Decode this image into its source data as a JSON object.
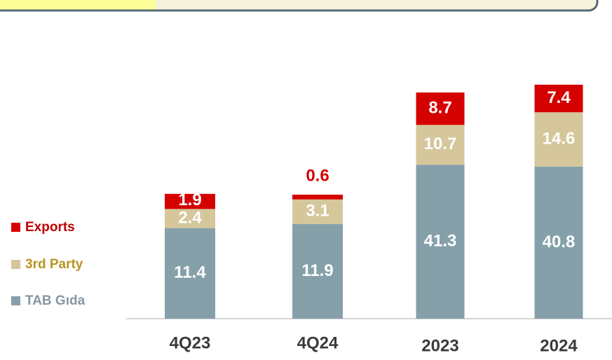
{
  "chart_data": [
    {
      "type": "stacked-bar",
      "categories": [
        "4Q23",
        "4Q24"
      ],
      "series": [
        {
          "name": "TAB Gıda",
          "color": "#86a0aa",
          "values": [
            11.4,
            11.9
          ]
        },
        {
          "name": "3rd Party",
          "color": "#d5c79b",
          "values": [
            2.4,
            3.1
          ]
        },
        {
          "name": "Exports",
          "color": "#d50000",
          "values": [
            1.9,
            0.6
          ]
        }
      ],
      "legend_text_colors": [
        "#8797a1",
        "#b99422",
        "#c00000"
      ]
    },
    {
      "type": "stacked-bar",
      "categories": [
        "2023",
        "2024"
      ],
      "series": [
        {
          "color": "#86a0aa",
          "values": [
            41.3,
            40.8
          ]
        },
        {
          "color": "#d5c79b",
          "values": [
            10.7,
            14.6
          ]
        },
        {
          "color": "#d50000",
          "values": [
            8.7,
            7.4
          ]
        }
      ]
    }
  ]
}
